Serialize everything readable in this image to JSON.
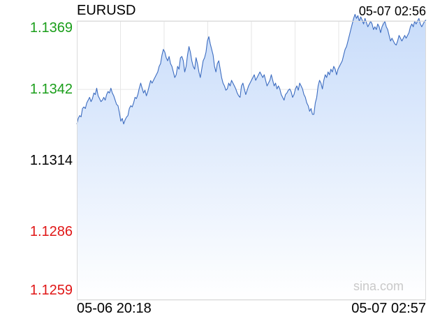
{
  "header": {
    "symbol": "EURUSD",
    "timestamp": "05-07 02:56"
  },
  "watermark": "sina.com",
  "colors": {
    "up": "#1a9e1a",
    "down": "#e01616",
    "base": "#000000",
    "line": "#3c6cc0",
    "fill_top": "#c8dcfa",
    "fill_bottom": "#ffffff"
  },
  "chart_data": {
    "type": "area",
    "symbol": "EURUSD",
    "x_start_label": "05-06 20:18",
    "x_end_label": "05-07 02:57",
    "y_ticks": [
      {
        "label": "1.1369",
        "value": 1.1369,
        "role": "up"
      },
      {
        "label": "1.1342",
        "value": 1.1342,
        "role": "up"
      },
      {
        "label": "1.1314",
        "value": 1.1314,
        "role": "base"
      },
      {
        "label": "1.1286",
        "value": 1.1286,
        "role": "down"
      },
      {
        "label": "1.1259",
        "value": 1.1259,
        "role": "down"
      }
    ],
    "ylim": [
      1.1259,
      1.1369
    ],
    "reference_price": 1.1314,
    "grid": true,
    "values": [
      1.13283,
      1.13306,
      1.13317,
      1.13312,
      1.13345,
      1.13351,
      1.13345,
      1.13367,
      1.13378,
      1.13389,
      1.13372,
      1.13384,
      1.13406,
      1.134,
      1.13425,
      1.13395,
      1.13384,
      1.13372,
      1.13378,
      1.13389,
      1.13378,
      1.134,
      1.13412,
      1.13406,
      1.13425,
      1.13406,
      1.13395,
      1.13378,
      1.13361,
      1.13356,
      1.13328,
      1.13295,
      1.13306,
      1.13284,
      1.133,
      1.13311,
      1.13317,
      1.13345,
      1.13356,
      1.13351,
      1.13367,
      1.13389,
      1.13384,
      1.134,
      1.13425,
      1.13445,
      1.13425,
      1.13406,
      1.13417,
      1.13395,
      1.13412,
      1.13434,
      1.13455,
      1.13445,
      1.13456,
      1.13467,
      1.13478,
      1.13489,
      1.13511,
      1.13522,
      1.13556,
      1.13578,
      1.13567,
      1.13545,
      1.13533,
      1.1355,
      1.13522,
      1.13511,
      1.13489,
      1.13467,
      1.13478,
      1.13511,
      1.135,
      1.13545,
      1.1355,
      1.13533,
      1.13489,
      1.13511,
      1.13556,
      1.13589,
      1.13567,
      1.13533,
      1.13511,
      1.135,
      1.13545,
      1.13522,
      1.13489,
      1.13467,
      1.135,
      1.13533,
      1.13545,
      1.13567,
      1.13611,
      1.13628,
      1.136,
      1.13578,
      1.13556,
      1.13511,
      1.13489,
      1.13522,
      1.13533,
      1.135,
      1.13467,
      1.13445,
      1.13434,
      1.13417,
      1.13422,
      1.13445,
      1.13434,
      1.13456,
      1.13445,
      1.13434,
      1.13422,
      1.13406,
      1.13395,
      1.13389,
      1.13434,
      1.13445,
      1.13422,
      1.134,
      1.13417,
      1.13434,
      1.13445,
      1.13456,
      1.13467,
      1.13478,
      1.13456,
      1.13467,
      1.13478,
      1.13489,
      1.13478,
      1.13467,
      1.13478,
      1.13456,
      1.13434,
      1.13445,
      1.13456,
      1.13478,
      1.13456,
      1.13434,
      1.13445,
      1.13422,
      1.13434,
      1.13422,
      1.134,
      1.13389,
      1.13378,
      1.134,
      1.13406,
      1.13417,
      1.13422,
      1.13411,
      1.13389,
      1.134,
      1.13422,
      1.13434,
      1.13417,
      1.13445,
      1.13434,
      1.13422,
      1.134,
      1.13389,
      1.13367,
      1.13356,
      1.13334,
      1.13345,
      1.13322,
      1.13322,
      1.13367,
      1.13389,
      1.13434,
      1.13456,
      1.13445,
      1.13422,
      1.13456,
      1.13478,
      1.13467,
      1.13489,
      1.13478,
      1.135,
      1.13489,
      1.13511,
      1.135,
      1.13478,
      1.135,
      1.13511,
      1.13522,
      1.13533,
      1.13556,
      1.13578,
      1.13589,
      1.13611,
      1.13633,
      1.13656,
      1.13678,
      1.137,
      1.13716,
      1.137,
      1.13711,
      1.13689,
      1.13706,
      1.13694,
      1.13678,
      1.137,
      1.13684,
      1.13667,
      1.13678,
      1.13689,
      1.13678,
      1.13656,
      1.13667,
      1.13656,
      1.13678,
      1.13667,
      1.13644,
      1.13667,
      1.13678,
      1.13689,
      1.13667,
      1.13656,
      1.13633,
      1.13611,
      1.13622,
      1.13611,
      1.136,
      1.13595,
      1.13611,
      1.13633,
      1.13622,
      1.13611,
      1.13622,
      1.13633,
      1.13622,
      1.13633,
      1.13644,
      1.13667,
      1.13678,
      1.13667,
      1.13689,
      1.13678,
      1.13689,
      1.137,
      1.13678,
      1.13667,
      1.13678,
      1.13689,
      1.13694
    ]
  }
}
